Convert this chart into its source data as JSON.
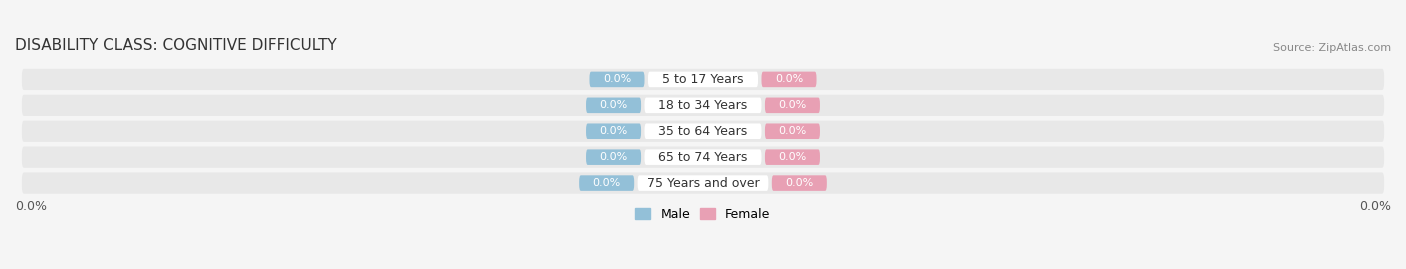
{
  "title": "DISABILITY CLASS: COGNITIVE DIFFICULTY",
  "source_text": "Source: ZipAtlas.com",
  "categories": [
    "5 to 17 Years",
    "18 to 34 Years",
    "35 to 64 Years",
    "65 to 74 Years",
    "75 Years and over"
  ],
  "male_values": [
    0.0,
    0.0,
    0.0,
    0.0,
    0.0
  ],
  "female_values": [
    0.0,
    0.0,
    0.0,
    0.0,
    0.0
  ],
  "male_color": "#93c0d8",
  "female_color": "#e8a0b4",
  "row_bg_color": "#e8e8e8",
  "axis_label_left": "0.0%",
  "axis_label_right": "0.0%",
  "bar_height": 0.72,
  "title_fontsize": 11,
  "source_fontsize": 8,
  "tick_fontsize": 9,
  "cat_fontsize": 9,
  "val_fontsize": 8,
  "legend_fontsize": 9,
  "background_color": "#f5f5f5",
  "row_alt_color": "#ebebeb",
  "center_label_bg": "#ffffff",
  "xlim_abs": 100
}
